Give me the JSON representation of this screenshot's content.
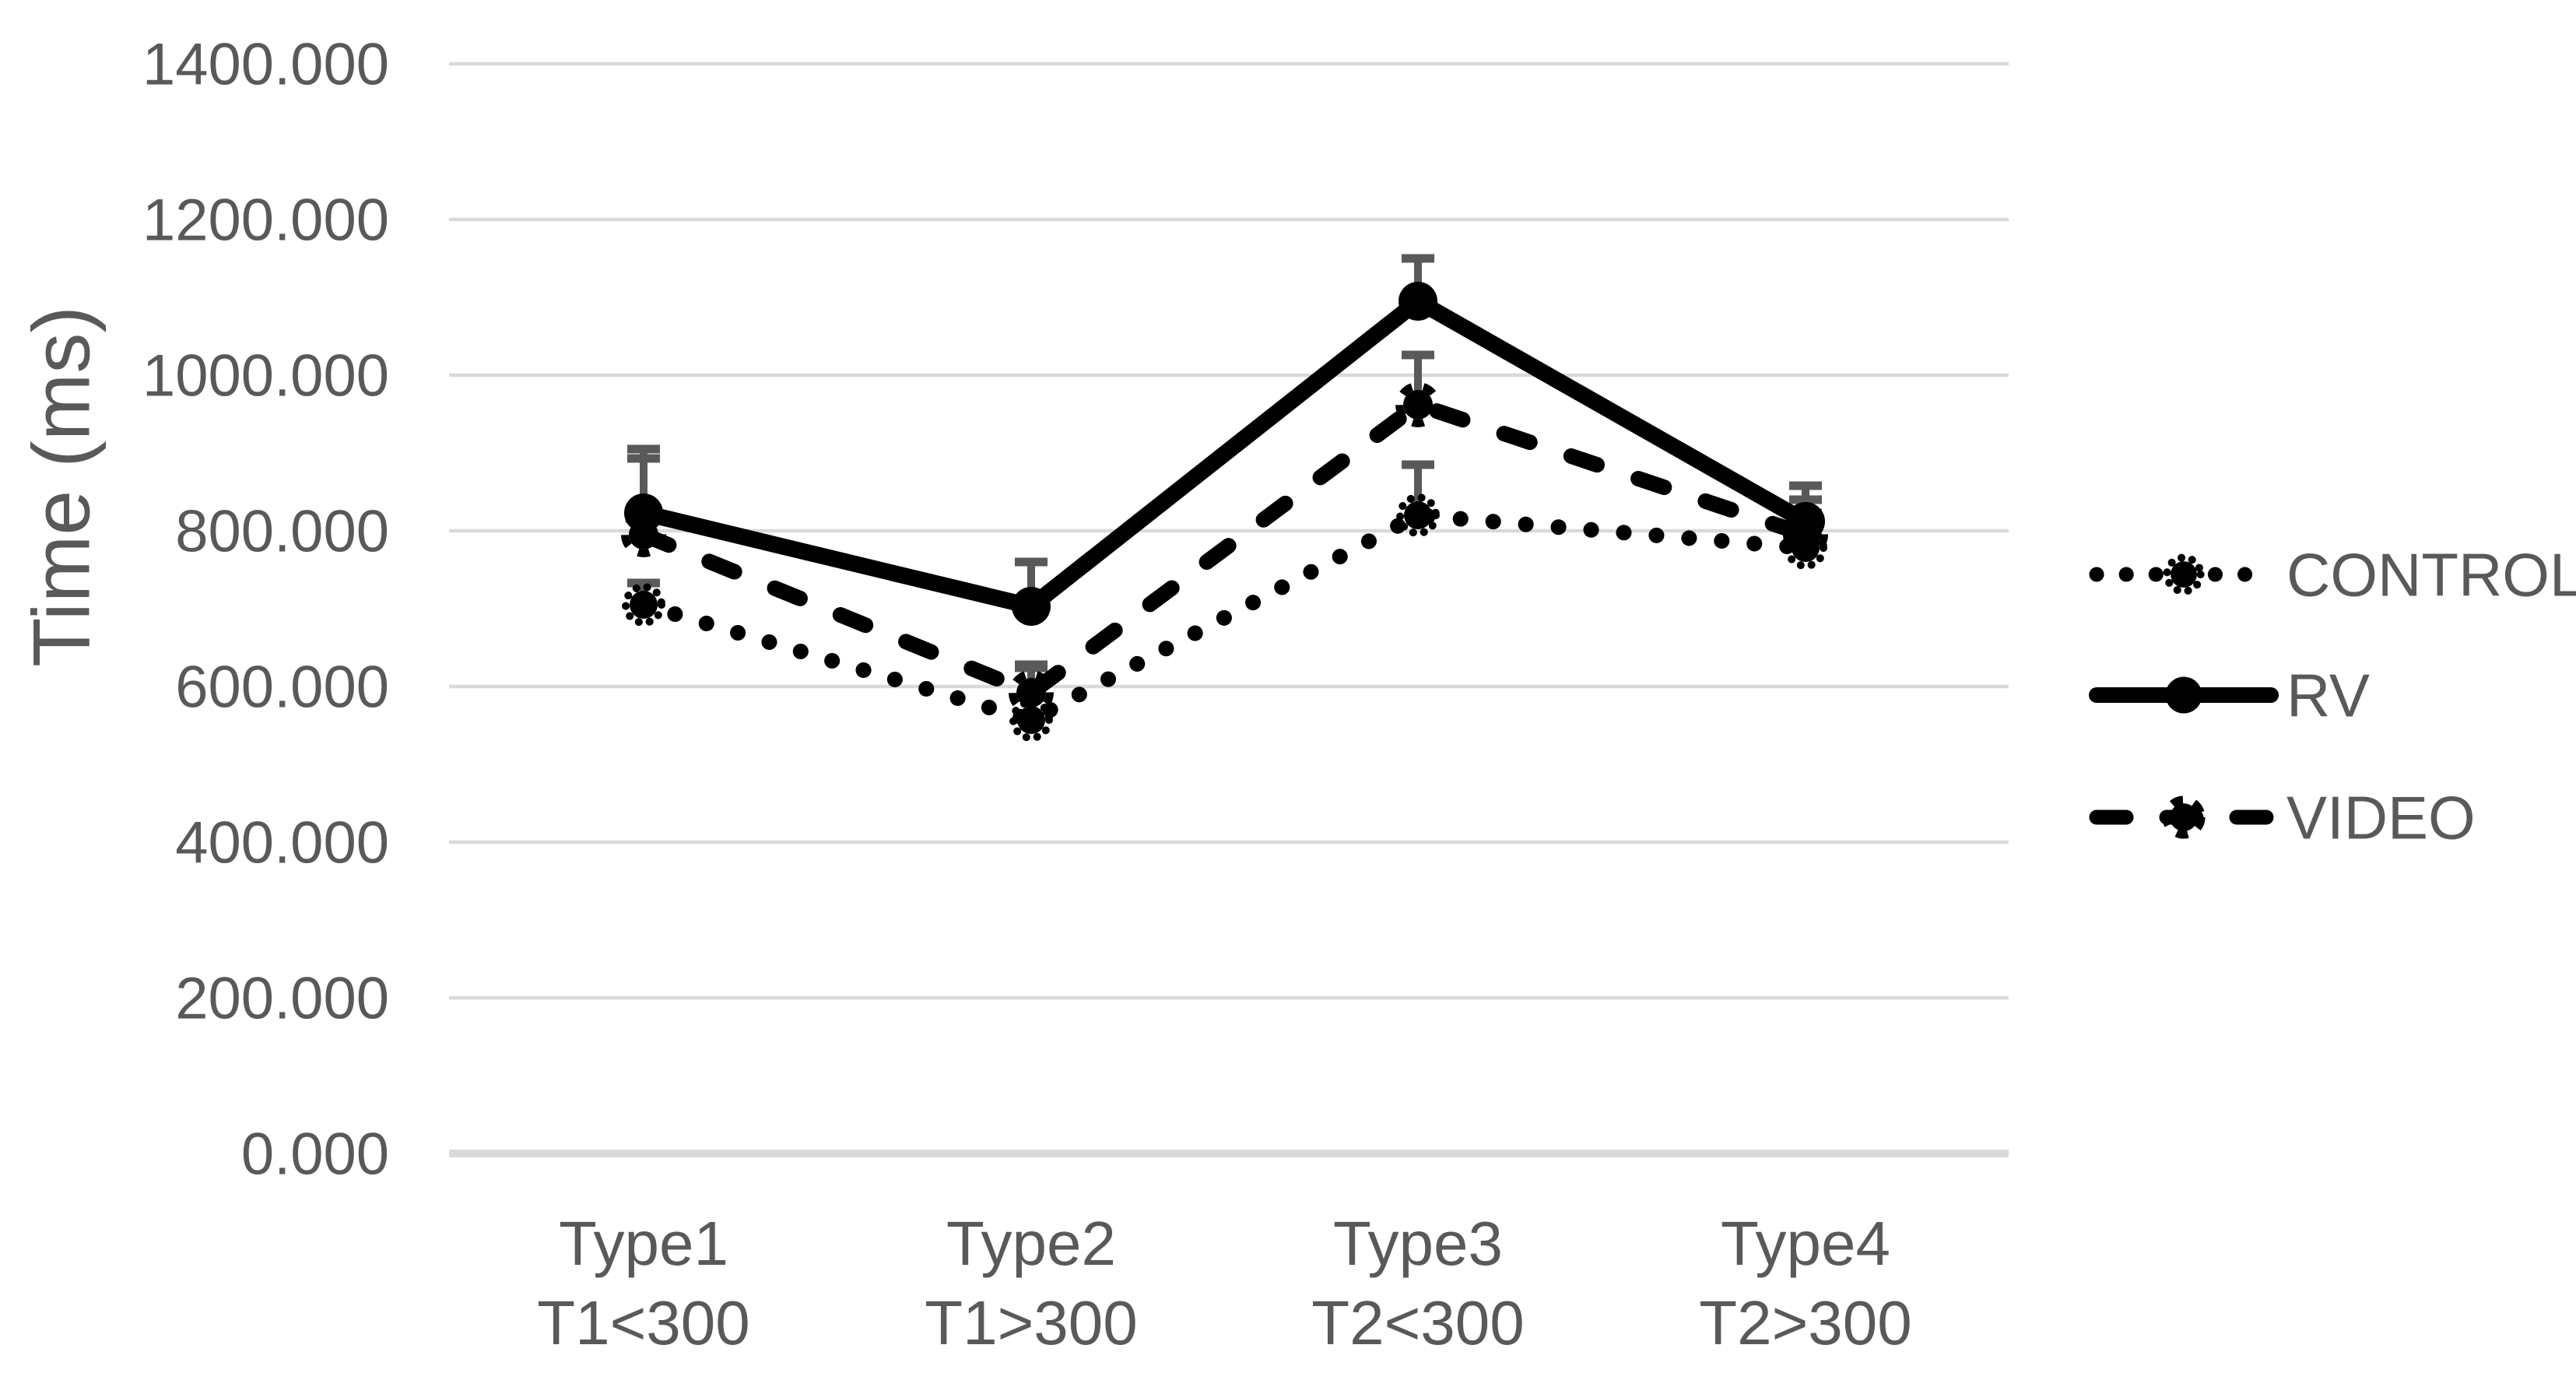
{
  "chart_data": {
    "type": "line",
    "title": "",
    "xlabel": "",
    "ylabel": "Time (ms)",
    "ylim": [
      0,
      1400
    ],
    "y_tick_step": 200,
    "y_tick_labels": [
      "1400.000",
      "1200.000",
      "1000.000",
      "800.000",
      "600.000",
      "400.000",
      "200.000",
      "0.000"
    ],
    "grid": "horizontal",
    "legend_position": "right",
    "categories": [
      [
        "Type1",
        "T1<300"
      ],
      [
        "Type2",
        "T1>300"
      ],
      [
        "Type3",
        "T2<300"
      ],
      [
        "Type4",
        "T2>300"
      ]
    ],
    "series": [
      {
        "name": "CONTROL",
        "line_style": "dotted",
        "marker": "circle-dotted-ring",
        "values": [
          705,
          557,
          820,
          778
        ],
        "error_plus": [
          28,
          67,
          65,
          45
        ]
      },
      {
        "name": "RV",
        "line_style": "solid",
        "marker": "circle",
        "values": [
          823,
          703,
          1095,
          812
        ],
        "error_plus": [
          82,
          57,
          55,
          46
        ]
      },
      {
        "name": "VIDEO",
        "line_style": "dashed",
        "marker": "circle-dashed-ring",
        "values": [
          795,
          592,
          962,
          795
        ],
        "error_plus": [
          98,
          36,
          64,
          45
        ]
      }
    ],
    "colors": {
      "series": "#000000",
      "grid": "#d9d9d9",
      "axis_line": "#d9d9d9",
      "text": "#595959",
      "error_bar": "#595959",
      "background": "#ffffff"
    }
  }
}
